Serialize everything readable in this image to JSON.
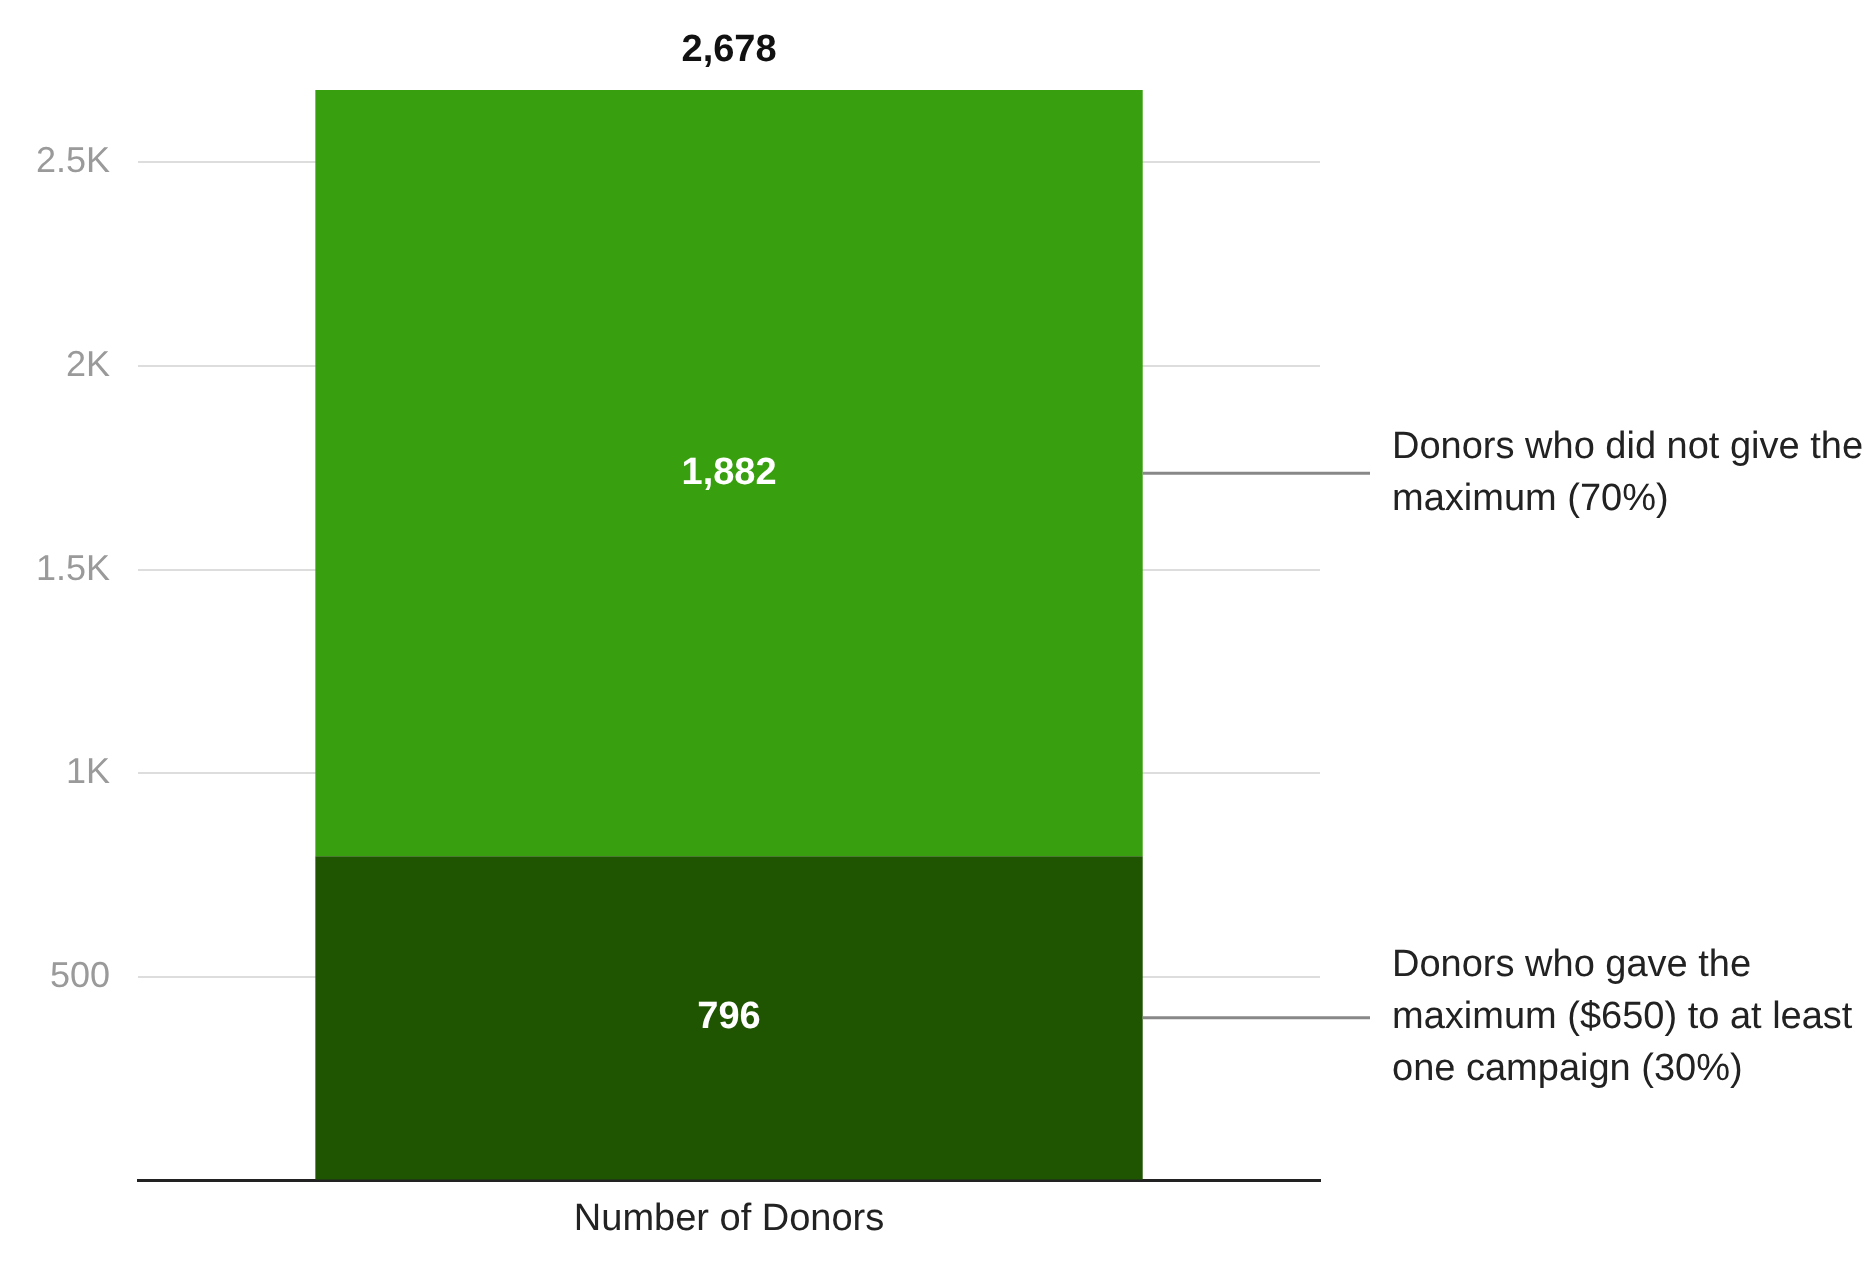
{
  "chart_data": {
    "type": "bar",
    "stacked": true,
    "categories": [
      "Number of Donors"
    ],
    "series": [
      {
        "name": "Donors who gave the maximum ($650) to at least one campaign (30%)",
        "color": "#1f5500",
        "values": [
          796
        ],
        "value_labels": [
          "796"
        ]
      },
      {
        "name": "Donors who did not give the maximum (70%)",
        "color": "#38a00e",
        "values": [
          1882
        ],
        "value_labels": [
          "1,882"
        ]
      }
    ],
    "totals": [
      "2,678"
    ],
    "ylim": [
      0,
      2678
    ],
    "yticks": [
      {
        "value": 0,
        "label": null
      },
      500,
      {
        "value": 1000,
        "label": "1K"
      },
      {
        "value": 1500,
        "label": "1.5K"
      },
      {
        "value": 2000,
        "label": "2K"
      },
      {
        "value": 2500,
        "label": "2.5K"
      }
    ],
    "grid": "y"
  }
}
